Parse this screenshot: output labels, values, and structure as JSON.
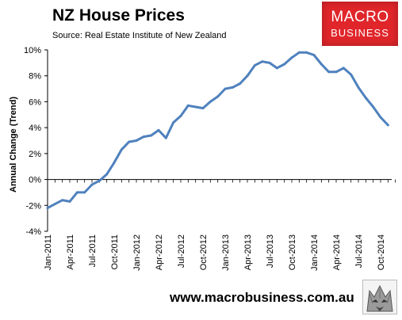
{
  "header": {
    "title": "NZ House Prices",
    "subtitle": "Source: Real  Estate Institute of New Zealand"
  },
  "logo": {
    "line1": "MACRO",
    "line2": "BUSINESS",
    "color": "#e0262b"
  },
  "footer": {
    "website": "www.macrobusiness.com.au",
    "emblem_icon": "wolf-emblem-icon"
  },
  "chart_data": {
    "type": "line",
    "title": "NZ House Prices",
    "ylabel": "Annual Change (Trend)",
    "xlabel": "",
    "ylim": [
      -4,
      10
    ],
    "y_ticks": [
      -4,
      -2,
      0,
      2,
      4,
      6,
      8,
      10
    ],
    "y_tick_labels": [
      "-4%",
      "-2%",
      "0%",
      "2%",
      "4%",
      "6%",
      "8%",
      "10%"
    ],
    "x_tick_labels": [
      "Jan-2011",
      "Apr-2011",
      "Jul-2011",
      "Oct-2011",
      "Jan-2012",
      "Apr-2012",
      "Jul-2012",
      "Oct-2012",
      "Jan-2013",
      "Apr-2013",
      "Jul-2013",
      "Oct-2013",
      "Jan-2014",
      "Apr-2014",
      "Jul-2014",
      "Oct-2014"
    ],
    "grid": false,
    "line_color": "#4f81bd",
    "series": [
      {
        "x": [
          "Jan-2011",
          "Feb-2011",
          "Mar-2011",
          "Apr-2011",
          "May-2011",
          "Jun-2011",
          "Jul-2011",
          "Aug-2011",
          "Sep-2011",
          "Oct-2011",
          "Nov-2011",
          "Dec-2011",
          "Jan-2012",
          "Feb-2012",
          "Mar-2012",
          "Apr-2012",
          "May-2012",
          "Jun-2012",
          "Jul-2012",
          "Aug-2012",
          "Sep-2012",
          "Oct-2012",
          "Nov-2012",
          "Dec-2012",
          "Jan-2013",
          "Feb-2013",
          "Mar-2013",
          "Apr-2013",
          "May-2013",
          "Jun-2013",
          "Jul-2013",
          "Aug-2013",
          "Sep-2013",
          "Oct-2013",
          "Nov-2013",
          "Dec-2013",
          "Jan-2014",
          "Feb-2014",
          "Mar-2014",
          "Apr-2014",
          "May-2014",
          "Jun-2014",
          "Jul-2014",
          "Aug-2014",
          "Sep-2014",
          "Oct-2014",
          "Nov-2014"
        ],
        "values": [
          -2.2,
          -1.9,
          -1.6,
          -1.7,
          -1.0,
          -1.0,
          -0.4,
          -0.1,
          0.4,
          1.3,
          2.3,
          2.9,
          3.0,
          3.3,
          3.4,
          3.8,
          3.2,
          4.4,
          4.9,
          5.7,
          5.6,
          5.5,
          6.0,
          6.4,
          7.0,
          7.1,
          7.4,
          8.0,
          8.8,
          9.1,
          9.0,
          8.6,
          8.9,
          9.4,
          9.8,
          9.8,
          9.6,
          8.9,
          8.3,
          8.3,
          8.6,
          8.1,
          7.1,
          6.3,
          5.6,
          4.8,
          4.2
        ]
      }
    ]
  }
}
